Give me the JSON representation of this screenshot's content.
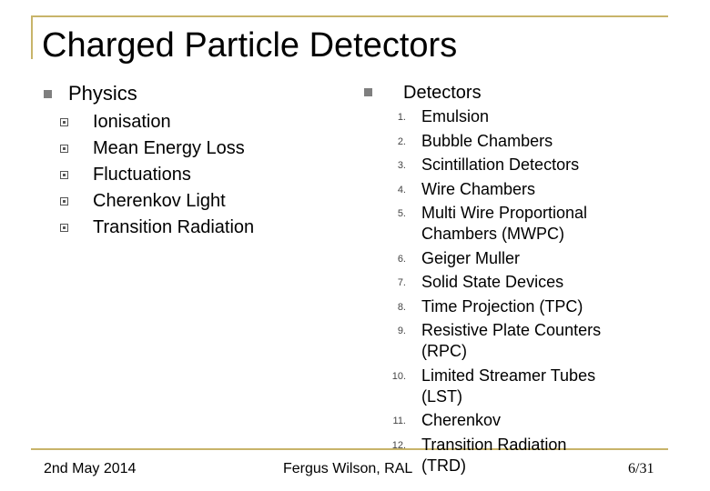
{
  "slide": {
    "title": "Charged Particle Detectors"
  },
  "left_column": {
    "heading": "Physics",
    "items": [
      "Ionisation",
      "Mean Energy Loss",
      "Fluctuations",
      "Cherenkov Light",
      "Transition Radiation"
    ]
  },
  "right_column": {
    "heading": "Detectors",
    "items": [
      {
        "num": "1.",
        "lines": [
          "Emulsion"
        ]
      },
      {
        "num": "2.",
        "lines": [
          "Bubble Chambers"
        ]
      },
      {
        "num": "3.",
        "lines": [
          "Scintillation Detectors"
        ]
      },
      {
        "num": "4.",
        "lines": [
          "Wire Chambers"
        ]
      },
      {
        "num": "5.",
        "lines": [
          "Multi Wire Proportional",
          "Chambers (MWPC)"
        ]
      },
      {
        "num": "6.",
        "lines": [
          "Geiger Muller"
        ]
      },
      {
        "num": "7.",
        "lines": [
          "Solid State Devices"
        ]
      },
      {
        "num": "8.",
        "lines": [
          "Time Projection (TPC)"
        ]
      },
      {
        "num": "9.",
        "lines": [
          "Resistive Plate Counters",
          "(RPC)"
        ]
      },
      {
        "num": "10.",
        "lines": [
          "Limited Streamer Tubes",
          "(LST)"
        ]
      },
      {
        "num": "11.",
        "lines": [
          "Cherenkov"
        ]
      },
      {
        "num": "12.",
        "lines": [
          "Transition Radiation",
          "(TRD)"
        ]
      }
    ]
  },
  "footer": {
    "date": "2nd May 2014",
    "author": "Fergus Wilson, RAL",
    "page": "6/31"
  },
  "colors": {
    "frame": "#c8b46a",
    "bullet": "#7f7f7f"
  }
}
